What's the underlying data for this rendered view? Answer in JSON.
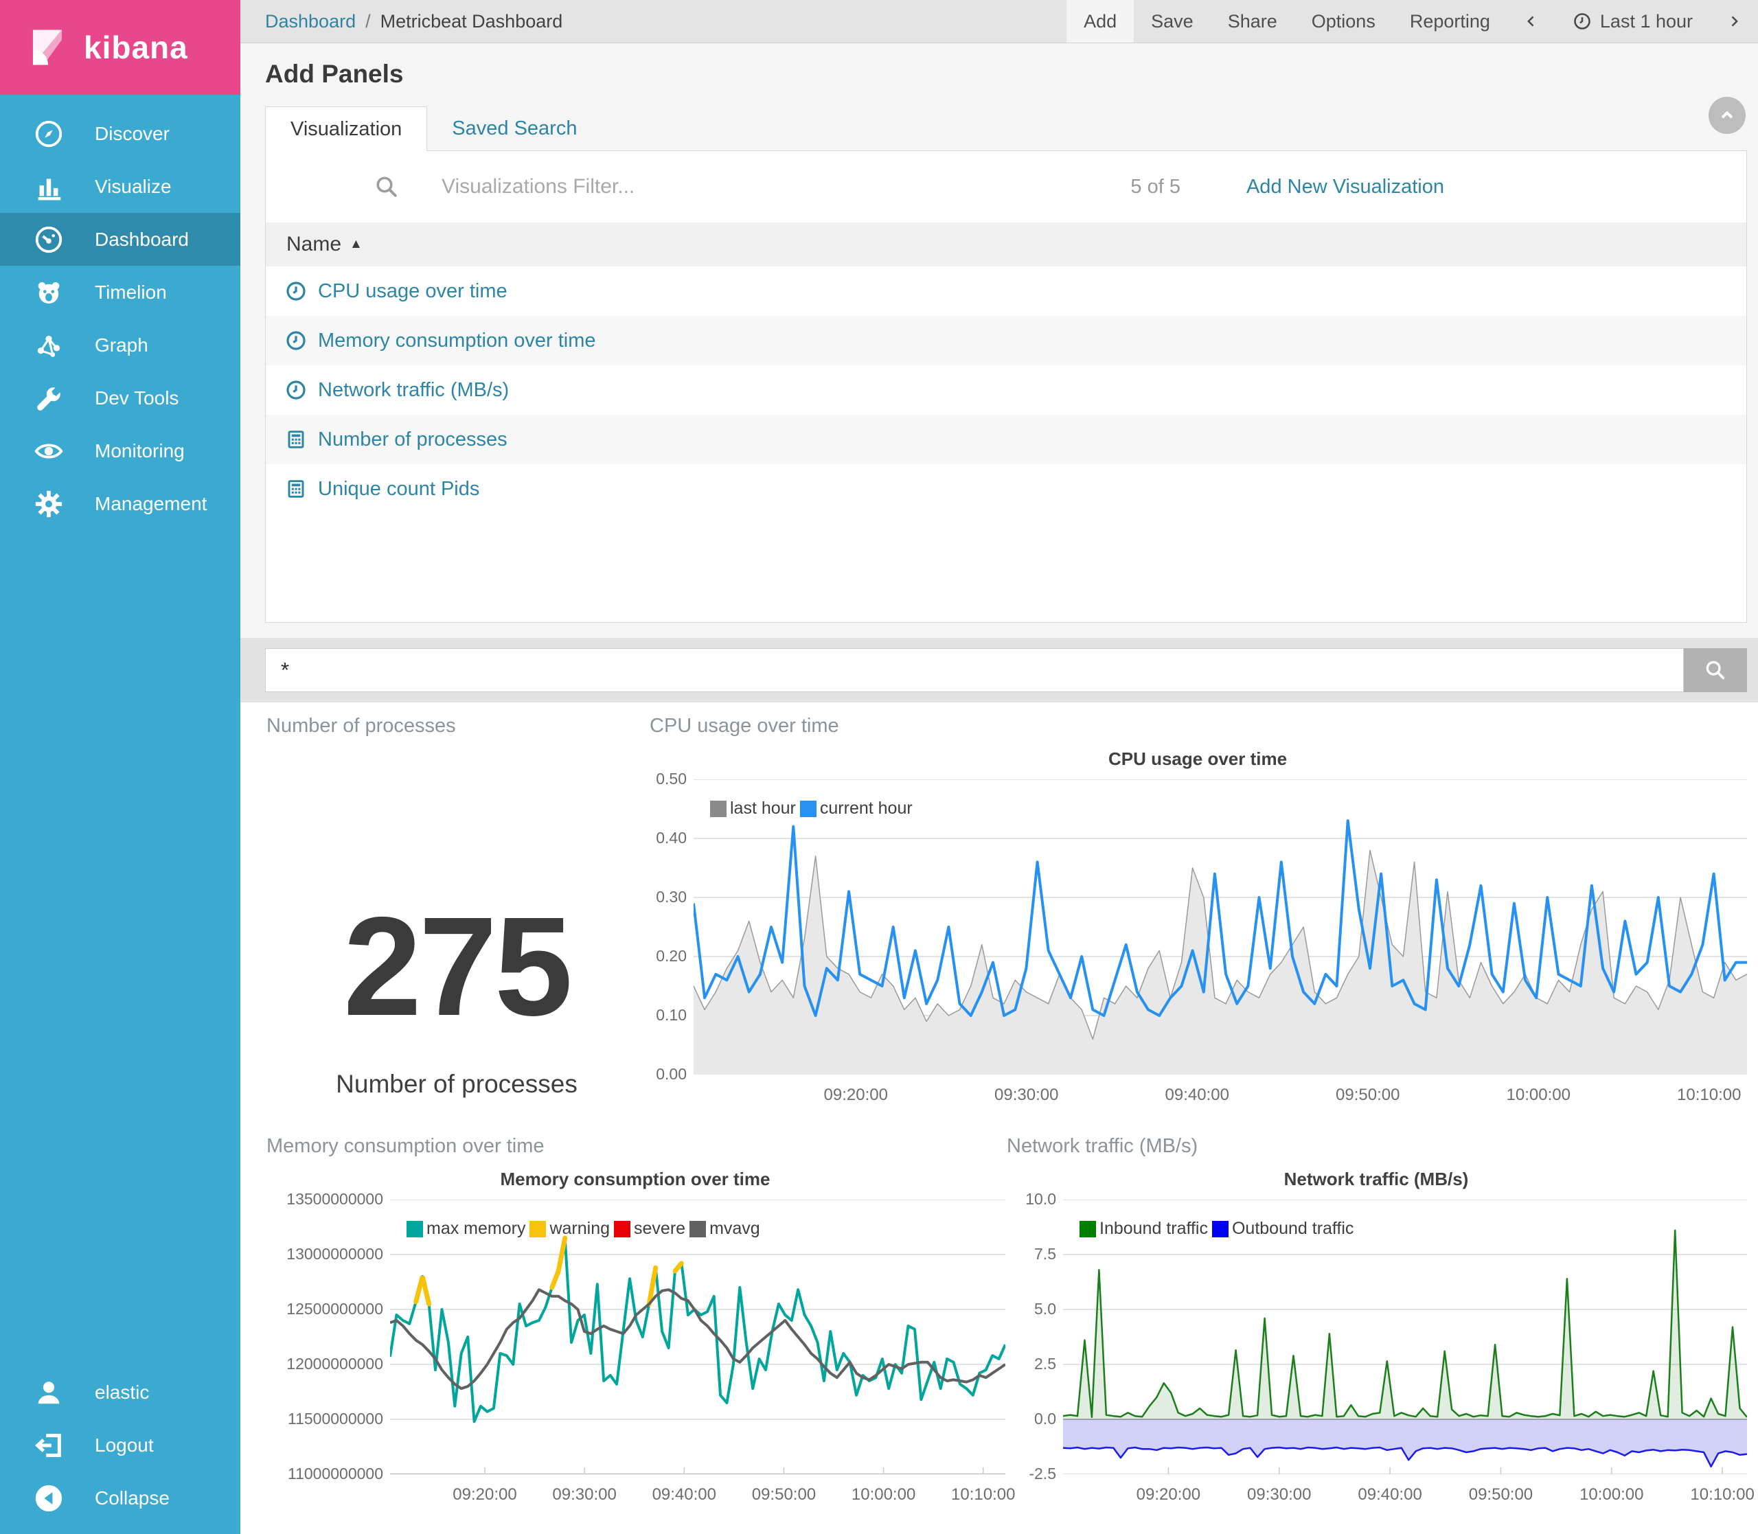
{
  "colors": {
    "brand_pink": "#e8488b",
    "sidebar_blue": "#3caad0",
    "sidebar_active": "#2e8bac",
    "link_teal": "#2d85a5"
  },
  "sidebar": {
    "logo": "kibana",
    "items": [
      {
        "label": "Discover",
        "icon": "compass-icon"
      },
      {
        "label": "Visualize",
        "icon": "bar-chart-icon"
      },
      {
        "label": "Dashboard",
        "icon": "gauge-icon",
        "active": true
      },
      {
        "label": "Timelion",
        "icon": "timelion-bear-icon"
      },
      {
        "label": "Graph",
        "icon": "graph-network-icon"
      },
      {
        "label": "Dev Tools",
        "icon": "wrench-icon"
      },
      {
        "label": "Monitoring",
        "icon": "eye-icon"
      },
      {
        "label": "Management",
        "icon": "gear-icon"
      }
    ],
    "footer": [
      {
        "label": "elastic",
        "icon": "user-icon"
      },
      {
        "label": "Logout",
        "icon": "logout-icon"
      },
      {
        "label": "Collapse",
        "icon": "collapse-circle-icon"
      }
    ]
  },
  "topbar": {
    "breadcrumb": {
      "root": "Dashboard",
      "separator": "/",
      "current": "Metricbeat Dashboard"
    },
    "menu": [
      {
        "label": "Add",
        "active": true
      },
      {
        "label": "Save"
      },
      {
        "label": "Share"
      },
      {
        "label": "Options"
      },
      {
        "label": "Reporting"
      }
    ],
    "time_label": "Last 1 hour"
  },
  "add_panels": {
    "title": "Add Panels",
    "tabs": [
      {
        "label": "Visualization",
        "active": true
      },
      {
        "label": "Saved Search"
      }
    ],
    "filter_placeholder": "Visualizations Filter...",
    "count": "5 of 5",
    "add_new": "Add New Visualization",
    "table": {
      "header": "Name",
      "sort": "▲",
      "rows": [
        {
          "label": "CPU usage over time",
          "icon": "clock-icon"
        },
        {
          "label": "Memory consumption over time",
          "icon": "clock-icon"
        },
        {
          "label": "Network traffic (MB/s)",
          "icon": "clock-icon"
        },
        {
          "label": "Number of processes",
          "icon": "calculator-icon"
        },
        {
          "label": "Unique count Pids",
          "icon": "calculator-icon"
        }
      ]
    }
  },
  "query_bar": {
    "value": "*"
  },
  "chart_data": [
    {
      "type": "metric",
      "panel_title": "Number of processes",
      "value": "275",
      "label": "Number of processes"
    },
    {
      "type": "line",
      "name": "cpu-usage",
      "panel_title": "CPU usage over time",
      "title": "CPU usage over time",
      "ylim": [
        0,
        0.5
      ],
      "yticks": [
        {
          "v": 0.5,
          "label": "0.50"
        },
        {
          "v": 0.4,
          "label": "0.40"
        },
        {
          "v": 0.3,
          "label": "0.30"
        },
        {
          "v": 0.2,
          "label": "0.20"
        },
        {
          "v": 0.1,
          "label": "0.10"
        },
        {
          "v": 0.0,
          "label": "0.00",
          "strong": true
        }
      ],
      "xticks": [
        {
          "f": 0.154,
          "label": "09:20:00"
        },
        {
          "f": 0.316,
          "label": "09:30:00"
        },
        {
          "f": 0.478,
          "label": "09:40:00"
        },
        {
          "f": 0.64,
          "label": "09:50:00"
        },
        {
          "f": 0.802,
          "label": "10:00:00"
        },
        {
          "f": 0.964,
          "label": "10:10:00"
        }
      ],
      "legend": [
        {
          "label": "last hour",
          "color": "#8a8a8a"
        },
        {
          "label": "current hour",
          "color": "#2791f2"
        }
      ],
      "series": [
        {
          "name": "last hour",
          "mode": "area",
          "color": "#9a9a9a",
          "fill": "#e8e8e8",
          "fill_to": 0,
          "width": 1.5,
          "values": [
            0.15,
            0.11,
            0.14,
            0.18,
            0.21,
            0.26,
            0.19,
            0.14,
            0.16,
            0.13,
            0.23,
            0.37,
            0.2,
            0.18,
            0.17,
            0.14,
            0.13,
            0.17,
            0.15,
            0.11,
            0.13,
            0.09,
            0.12,
            0.1,
            0.11,
            0.15,
            0.22,
            0.13,
            0.12,
            0.16,
            0.14,
            0.13,
            0.12,
            0.17,
            0.13,
            0.11,
            0.06,
            0.13,
            0.12,
            0.15,
            0.13,
            0.18,
            0.21,
            0.13,
            0.19,
            0.35,
            0.3,
            0.13,
            0.12,
            0.16,
            0.14,
            0.13,
            0.17,
            0.19,
            0.22,
            0.25,
            0.14,
            0.12,
            0.13,
            0.17,
            0.2,
            0.38,
            0.3,
            0.22,
            0.2,
            0.36,
            0.14,
            0.13,
            0.31,
            0.16,
            0.13,
            0.19,
            0.15,
            0.12,
            0.14,
            0.17,
            0.13,
            0.12,
            0.16,
            0.14,
            0.22,
            0.28,
            0.31,
            0.13,
            0.12,
            0.15,
            0.14,
            0.11,
            0.16,
            0.3,
            0.22,
            0.14,
            0.13,
            0.19,
            0.16,
            0.17
          ]
        },
        {
          "name": "current hour",
          "mode": "line",
          "color": "#2791f2",
          "width": 4,
          "values": [
            0.29,
            0.13,
            0.17,
            0.16,
            0.2,
            0.14,
            0.17,
            0.25,
            0.19,
            0.42,
            0.15,
            0.1,
            0.18,
            0.16,
            0.31,
            0.17,
            0.16,
            0.15,
            0.25,
            0.13,
            0.21,
            0.12,
            0.16,
            0.25,
            0.12,
            0.1,
            0.14,
            0.19,
            0.1,
            0.11,
            0.18,
            0.36,
            0.21,
            0.17,
            0.13,
            0.2,
            0.11,
            0.1,
            0.16,
            0.22,
            0.14,
            0.11,
            0.1,
            0.13,
            0.15,
            0.21,
            0.14,
            0.34,
            0.17,
            0.12,
            0.15,
            0.3,
            0.18,
            0.36,
            0.2,
            0.14,
            0.12,
            0.17,
            0.15,
            0.43,
            0.28,
            0.18,
            0.34,
            0.15,
            0.16,
            0.12,
            0.11,
            0.33,
            0.18,
            0.15,
            0.22,
            0.32,
            0.17,
            0.14,
            0.29,
            0.16,
            0.13,
            0.3,
            0.17,
            0.16,
            0.15,
            0.32,
            0.18,
            0.14,
            0.26,
            0.17,
            0.19,
            0.3,
            0.15,
            0.14,
            0.17,
            0.22,
            0.34,
            0.16,
            0.19,
            0.19
          ]
        }
      ]
    },
    {
      "type": "line",
      "name": "memory-consumption",
      "panel_title": "Memory consumption over time",
      "title": "Memory consumption over time",
      "ylim": [
        11.0,
        13.5
      ],
      "value_unit": "billions",
      "yticks": [
        {
          "v": 13.5,
          "label": "13500000000"
        },
        {
          "v": 13.0,
          "label": "13000000000"
        },
        {
          "v": 12.5,
          "label": "12500000000"
        },
        {
          "v": 12.0,
          "label": "12000000000"
        },
        {
          "v": 11.5,
          "label": "11500000000"
        },
        {
          "v": 11.0,
          "label": "11000000000",
          "strong": true
        }
      ],
      "xticks": [
        {
          "f": 0.154,
          "label": "09:20:00"
        },
        {
          "f": 0.316,
          "label": "09:30:00"
        },
        {
          "f": 0.478,
          "label": "09:40:00"
        },
        {
          "f": 0.64,
          "label": "09:50:00"
        },
        {
          "f": 0.802,
          "label": "10:00:00"
        },
        {
          "f": 0.964,
          "label": "10:10:00"
        }
      ],
      "legend": [
        {
          "label": "max memory",
          "color": "#00a69b"
        },
        {
          "label": "warning",
          "color": "#f5c30a"
        },
        {
          "label": "severe",
          "color": "#e60005"
        },
        {
          "label": "mvavg",
          "color": "#616161"
        }
      ],
      "warning_threshold": 12.55,
      "series": [
        {
          "name": "max memory",
          "mode": "line",
          "color": "#00a69b",
          "width": 4,
          "warn_color": "#f5c30a",
          "values": [
            12.07,
            12.45,
            12.4,
            12.37,
            12.57,
            12.8,
            12.55,
            11.95,
            12.5,
            12.2,
            11.62,
            12.1,
            12.25,
            11.48,
            11.62,
            11.57,
            11.6,
            12.1,
            12.08,
            12.0,
            12.55,
            12.35,
            12.38,
            12.4,
            12.52,
            12.7,
            12.85,
            13.15,
            12.2,
            12.4,
            12.45,
            12.1,
            12.73,
            11.85,
            11.9,
            11.82,
            12.3,
            12.78,
            12.4,
            12.25,
            12.55,
            12.88,
            12.3,
            12.15,
            12.85,
            12.92,
            12.45,
            12.5,
            12.45,
            12.48,
            12.62,
            11.72,
            11.65,
            12.0,
            12.7,
            12.2,
            11.78,
            12.05,
            11.95,
            12.3,
            12.55,
            12.45,
            12.4,
            12.68,
            12.45,
            12.35,
            12.2,
            11.85,
            12.3,
            11.95,
            12.1,
            12.02,
            11.72,
            11.9,
            11.85,
            11.88,
            12.05,
            11.78,
            12.0,
            11.92,
            12.35,
            12.32,
            11.68,
            11.85,
            12.02,
            11.78,
            12.05,
            12.02,
            11.82,
            11.78,
            11.72,
            11.92,
            11.95,
            12.08,
            12.05,
            12.18
          ]
        },
        {
          "name": "mvavg",
          "mode": "line",
          "color": "#616161",
          "width": 4,
          "values": [
            12.38,
            12.4,
            12.35,
            12.28,
            12.22,
            12.18,
            12.12,
            12.05,
            11.95,
            11.88,
            11.82,
            11.78,
            11.8,
            11.85,
            11.92,
            12.0,
            12.1,
            12.2,
            12.32,
            12.38,
            12.42,
            12.5,
            12.58,
            12.68,
            12.65,
            12.62,
            12.62,
            12.58,
            12.55,
            12.5,
            12.3,
            12.28,
            12.32,
            12.35,
            12.32,
            12.3,
            12.28,
            12.35,
            12.45,
            12.5,
            12.55,
            12.62,
            12.67,
            12.68,
            12.65,
            12.6,
            12.58,
            12.5,
            12.4,
            12.35,
            12.28,
            12.22,
            12.15,
            12.05,
            12.02,
            12.08,
            12.15,
            12.2,
            12.25,
            12.3,
            12.35,
            12.4,
            12.32,
            12.25,
            12.18,
            12.1,
            12.05,
            11.98,
            11.92,
            11.88,
            11.95,
            12.02,
            11.92,
            11.88,
            11.86,
            11.9,
            11.95,
            12.0,
            11.98,
            11.96,
            12.0,
            12.01,
            12.02,
            12.02,
            11.95,
            11.88,
            11.85,
            11.86,
            11.85,
            11.84,
            11.86,
            11.9,
            11.88,
            11.92,
            11.96,
            12.0
          ]
        }
      ]
    },
    {
      "type": "line",
      "name": "network-traffic",
      "panel_title": "Network traffic (MB/s)",
      "title": "Network traffic (MB/s)",
      "ylim": [
        -2.5,
        10.0
      ],
      "yticks": [
        {
          "v": 10.0,
          "label": "10.0"
        },
        {
          "v": 7.5,
          "label": "7.5"
        },
        {
          "v": 5.0,
          "label": "5.0"
        },
        {
          "v": 2.5,
          "label": "2.5"
        },
        {
          "v": 0.0,
          "label": "0.0",
          "strong": true
        },
        {
          "v": -2.5,
          "label": "-2.5"
        }
      ],
      "xticks": [
        {
          "f": 0.154,
          "label": "09:20:00"
        },
        {
          "f": 0.316,
          "label": "09:30:00"
        },
        {
          "f": 0.478,
          "label": "09:40:00"
        },
        {
          "f": 0.64,
          "label": "09:50:00"
        },
        {
          "f": 0.802,
          "label": "10:00:00"
        },
        {
          "f": 0.964,
          "label": "10:10:00"
        }
      ],
      "legend": [
        {
          "label": "Inbound traffic",
          "color": "#008000"
        },
        {
          "label": "Outbound traffic",
          "color": "#0000f0"
        }
      ],
      "series": [
        {
          "name": "Inbound traffic",
          "mode": "area",
          "color": "#1b7e1b",
          "fill": "rgba(40,130,40,0.14)",
          "fill_to": 0,
          "width": 2.5,
          "values": [
            0.15,
            0.2,
            0.15,
            3.6,
            0.1,
            6.8,
            0.2,
            0.15,
            0.12,
            0.3,
            0.15,
            0.12,
            0.6,
            1.0,
            1.65,
            1.2,
            0.3,
            0.15,
            0.25,
            0.5,
            0.2,
            0.15,
            0.12,
            0.2,
            3.15,
            0.15,
            0.12,
            0.18,
            4.6,
            0.2,
            0.12,
            0.15,
            2.9,
            0.15,
            0.12,
            0.2,
            0.15,
            3.9,
            0.12,
            0.15,
            0.65,
            0.15,
            0.12,
            0.25,
            0.3,
            2.65,
            0.15,
            0.3,
            0.18,
            0.12,
            0.5,
            0.15,
            0.12,
            3.1,
            0.45,
            0.15,
            0.25,
            0.12,
            0.18,
            0.15,
            3.4,
            0.15,
            0.12,
            0.3,
            0.2,
            0.15,
            0.12,
            0.15,
            0.25,
            0.18,
            6.4,
            0.15,
            0.25,
            0.12,
            0.35,
            0.15,
            0.2,
            0.15,
            0.12,
            0.2,
            0.3,
            0.15,
            2.2,
            0.18,
            0.12,
            8.6,
            0.3,
            0.15,
            0.4,
            0.12,
            0.95,
            0.25,
            0.15,
            4.2,
            0.5,
            0.1
          ]
        },
        {
          "name": "Outbound traffic",
          "mode": "area",
          "color": "#1a1af0",
          "fill": "rgba(90,90,235,0.28)",
          "fill_to": 0,
          "width": 2.5,
          "values": [
            -1.3,
            -1.32,
            -1.28,
            -1.35,
            -1.3,
            -1.33,
            -1.28,
            -1.3,
            -1.75,
            -1.32,
            -1.28,
            -1.35,
            -1.35,
            -1.4,
            -1.3,
            -1.32,
            -1.28,
            -1.3,
            -1.35,
            -1.3,
            -1.28,
            -1.32,
            -1.3,
            -1.62,
            -1.55,
            -1.35,
            -1.3,
            -1.72,
            -1.35,
            -1.3,
            -1.28,
            -1.32,
            -1.3,
            -1.35,
            -1.28,
            -1.3,
            -1.35,
            -1.32,
            -1.28,
            -1.35,
            -1.3,
            -1.32,
            -1.35,
            -1.3,
            -1.28,
            -1.4,
            -1.35,
            -1.3,
            -1.85,
            -1.45,
            -1.32,
            -1.3,
            -1.35,
            -1.3,
            -1.32,
            -1.4,
            -1.5,
            -1.45,
            -1.35,
            -1.32,
            -1.3,
            -1.35,
            -1.3,
            -1.32,
            -1.35,
            -1.4,
            -1.32,
            -1.3,
            -1.45,
            -1.35,
            -1.3,
            -1.32,
            -1.4,
            -1.35,
            -1.45,
            -1.55,
            -1.4,
            -1.5,
            -1.65,
            -1.45,
            -1.5,
            -1.42,
            -1.38,
            -1.45,
            -1.4,
            -1.42,
            -1.38,
            -1.4,
            -1.45,
            -1.5,
            -2.15,
            -1.55,
            -1.45,
            -1.5,
            -1.62,
            -1.58
          ]
        }
      ]
    }
  ]
}
